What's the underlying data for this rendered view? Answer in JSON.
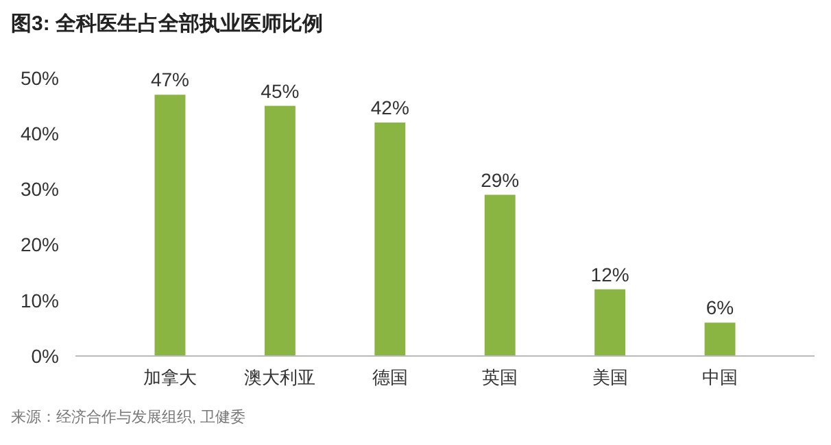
{
  "chart_data": {
    "type": "bar",
    "title": "图3: 全科医生占全部执业医师比例",
    "categories": [
      "加拿大",
      "澳大利亚",
      "德国",
      "英国",
      "美国",
      "中国"
    ],
    "values": [
      47,
      45,
      42,
      29,
      12,
      6
    ],
    "value_labels": [
      "47%",
      "45%",
      "42%",
      "29%",
      "12%",
      "6%"
    ],
    "color": "#8ab543",
    "ylim": [
      0,
      50
    ],
    "yticks": [
      {
        "value": 0,
        "label": "0%"
      },
      {
        "value": 10,
        "label": "10%"
      },
      {
        "value": 20,
        "label": "20%"
      },
      {
        "value": 30,
        "label": "30%"
      },
      {
        "value": 40,
        "label": "40%"
      },
      {
        "value": 50,
        "label": "50%"
      }
    ],
    "annotations": [
      "来源：经济合作与发展组织, 卫健委"
    ]
  }
}
